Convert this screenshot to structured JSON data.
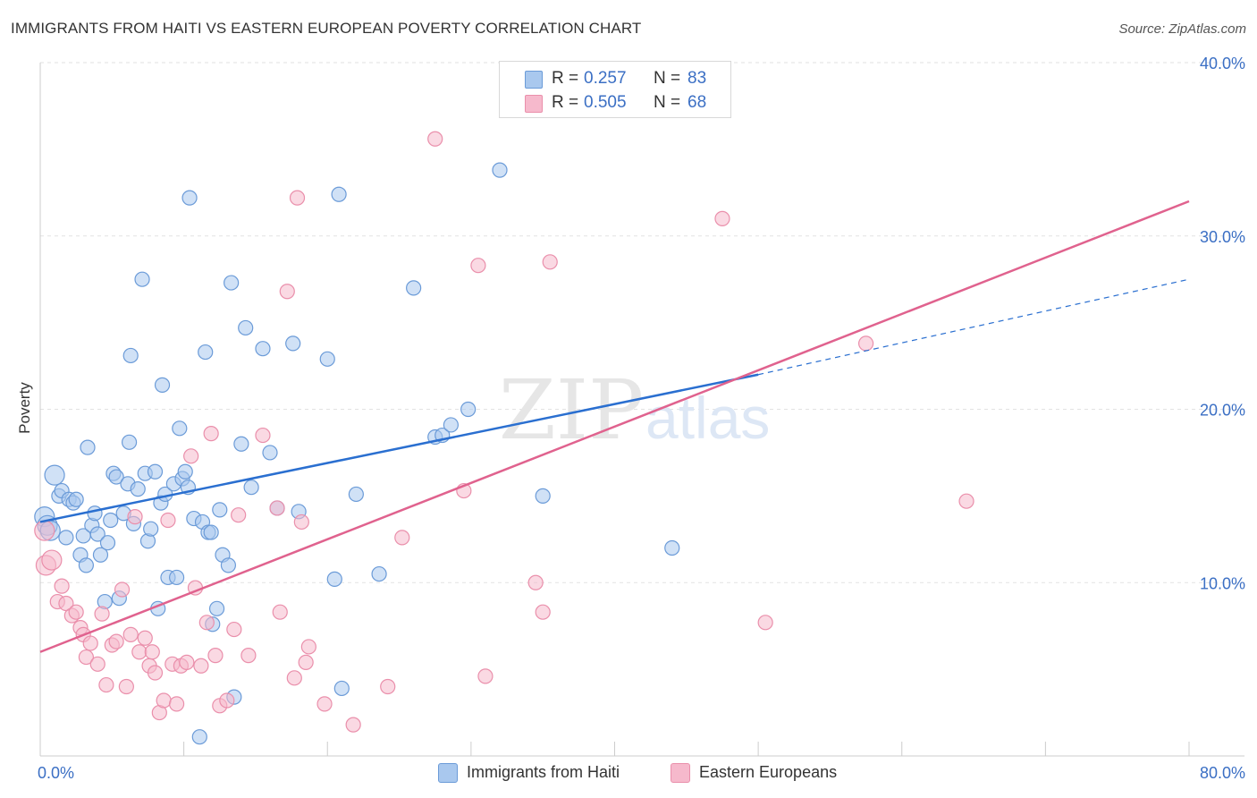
{
  "header": {
    "title": "IMMIGRANTS FROM HAITI VS EASTERN EUROPEAN POVERTY CORRELATION CHART",
    "source": "Source: ZipAtlas.com"
  },
  "watermark": {
    "zip": "ZIP",
    "atlas": "atlas"
  },
  "legend": {
    "rows": [
      {
        "r_label": "R =",
        "r_value": "0.257",
        "n_label": "N =",
        "n_value": "83"
      },
      {
        "r_label": "R =",
        "r_value": "0.505",
        "n_label": "N =",
        "n_value": "68"
      }
    ]
  },
  "colors": {
    "blue_fill": "#a9c8ee",
    "blue_stroke": "#6b9bd8",
    "blue_line": "#2a6fd0",
    "pink_fill": "#f6b9cc",
    "pink_stroke": "#ea8fab",
    "pink_line": "#e0628e",
    "tick_label": "#3b6fc4",
    "grid": "#e2e2e2"
  },
  "chart_data": {
    "type": "scatter",
    "ylabel": "Poverty",
    "xlim": [
      0,
      80
    ],
    "ylim": [
      0,
      40
    ],
    "x_tick_labels": [
      {
        "value": 0,
        "label": "0.0%"
      },
      {
        "value": 80,
        "label": "80.0%"
      }
    ],
    "y_tick_labels": [
      {
        "value": 10,
        "label": "10.0%"
      },
      {
        "value": 20,
        "label": "20.0%"
      },
      {
        "value": 30,
        "label": "30.0%"
      },
      {
        "value": 40,
        "label": "40.0%"
      }
    ],
    "grid": true,
    "legend_position": "top-center",
    "series": [
      {
        "name": "Immigrants from Haiti",
        "color": "#a9c8ee",
        "trend": {
          "x": [
            0,
            50
          ],
          "y": [
            13.5,
            22.0
          ],
          "dashed_to": {
            "x": 80,
            "y": 27.5
          }
        },
        "points": [
          [
            0.3,
            13.8
          ],
          [
            0.5,
            13.3
          ],
          [
            0.7,
            13.0
          ],
          [
            1.0,
            16.2
          ],
          [
            1.3,
            15.0
          ],
          [
            1.5,
            15.3
          ],
          [
            1.8,
            12.6
          ],
          [
            2.0,
            14.8
          ],
          [
            2.3,
            14.6
          ],
          [
            2.5,
            14.8
          ],
          [
            2.8,
            11.6
          ],
          [
            3.0,
            12.7
          ],
          [
            3.2,
            11.0
          ],
          [
            3.3,
            17.8
          ],
          [
            3.6,
            13.3
          ],
          [
            3.8,
            14.0
          ],
          [
            4.0,
            12.8
          ],
          [
            4.2,
            11.6
          ],
          [
            4.5,
            8.9
          ],
          [
            4.7,
            12.3
          ],
          [
            4.9,
            13.6
          ],
          [
            5.1,
            16.3
          ],
          [
            5.3,
            16.1
          ],
          [
            5.5,
            9.1
          ],
          [
            5.8,
            14.0
          ],
          [
            6.1,
            15.7
          ],
          [
            6.2,
            18.1
          ],
          [
            6.3,
            23.1
          ],
          [
            6.5,
            13.4
          ],
          [
            6.8,
            15.4
          ],
          [
            7.1,
            27.5
          ],
          [
            7.3,
            16.3
          ],
          [
            7.5,
            12.4
          ],
          [
            7.7,
            13.1
          ],
          [
            8.0,
            16.4
          ],
          [
            8.2,
            8.5
          ],
          [
            8.4,
            14.6
          ],
          [
            8.5,
            21.4
          ],
          [
            8.7,
            15.1
          ],
          [
            8.9,
            10.3
          ],
          [
            9.3,
            15.7
          ],
          [
            9.5,
            10.3
          ],
          [
            9.7,
            18.9
          ],
          [
            9.9,
            16.0
          ],
          [
            10.1,
            16.4
          ],
          [
            10.3,
            15.5
          ],
          [
            10.4,
            32.2
          ],
          [
            10.7,
            13.7
          ],
          [
            11.1,
            1.1
          ],
          [
            11.3,
            13.5
          ],
          [
            11.5,
            23.3
          ],
          [
            11.7,
            12.9
          ],
          [
            11.9,
            12.9
          ],
          [
            12.0,
            7.6
          ],
          [
            12.3,
            8.5
          ],
          [
            12.5,
            14.2
          ],
          [
            12.7,
            11.6
          ],
          [
            13.1,
            11.0
          ],
          [
            13.3,
            27.3
          ],
          [
            13.5,
            3.4
          ],
          [
            14.0,
            18.0
          ],
          [
            14.3,
            24.7
          ],
          [
            14.7,
            15.5
          ],
          [
            15.5,
            23.5
          ],
          [
            16.0,
            17.5
          ],
          [
            16.5,
            14.3
          ],
          [
            17.6,
            23.8
          ],
          [
            18.0,
            14.1
          ],
          [
            20.0,
            22.9
          ],
          [
            20.5,
            10.2
          ],
          [
            20.8,
            32.4
          ],
          [
            21.0,
            3.9
          ],
          [
            22.0,
            15.1
          ],
          [
            23.6,
            10.5
          ],
          [
            26.0,
            27.0
          ],
          [
            27.5,
            18.4
          ],
          [
            28.0,
            18.5
          ],
          [
            28.6,
            19.1
          ],
          [
            29.8,
            20.0
          ],
          [
            32.0,
            33.8
          ],
          [
            35.0,
            15.0
          ],
          [
            44.0,
            12.0
          ],
          [
            32.5,
            39.5
          ]
        ]
      },
      {
        "name": "Eastern Europeans",
        "color": "#f6b9cc",
        "trend": {
          "x": [
            0,
            80
          ],
          "y": [
            6.0,
            32.0
          ]
        },
        "points": [
          [
            0.3,
            13.0
          ],
          [
            0.4,
            11.0
          ],
          [
            0.8,
            11.3
          ],
          [
            1.2,
            8.9
          ],
          [
            1.5,
            9.8
          ],
          [
            1.8,
            8.8
          ],
          [
            2.2,
            8.1
          ],
          [
            2.5,
            8.3
          ],
          [
            2.8,
            7.4
          ],
          [
            3.0,
            7.0
          ],
          [
            3.2,
            5.7
          ],
          [
            3.5,
            6.5
          ],
          [
            4.0,
            5.3
          ],
          [
            4.3,
            8.2
          ],
          [
            4.6,
            4.1
          ],
          [
            5.0,
            6.4
          ],
          [
            5.3,
            6.6
          ],
          [
            5.7,
            9.6
          ],
          [
            6.0,
            4.0
          ],
          [
            6.3,
            7.0
          ],
          [
            6.6,
            13.8
          ],
          [
            6.9,
            6.0
          ],
          [
            7.3,
            6.8
          ],
          [
            7.6,
            5.2
          ],
          [
            7.8,
            6.0
          ],
          [
            8.0,
            4.8
          ],
          [
            8.3,
            2.5
          ],
          [
            8.6,
            3.2
          ],
          [
            8.9,
            13.6
          ],
          [
            9.2,
            5.3
          ],
          [
            9.5,
            3.0
          ],
          [
            9.8,
            5.2
          ],
          [
            10.2,
            5.4
          ],
          [
            10.5,
            17.3
          ],
          [
            10.8,
            9.7
          ],
          [
            11.2,
            5.2
          ],
          [
            11.6,
            7.7
          ],
          [
            11.9,
            18.6
          ],
          [
            12.2,
            5.8
          ],
          [
            12.5,
            2.9
          ],
          [
            13.0,
            3.2
          ],
          [
            13.5,
            7.3
          ],
          [
            13.8,
            13.9
          ],
          [
            14.5,
            5.8
          ],
          [
            15.5,
            18.5
          ],
          [
            16.5,
            14.3
          ],
          [
            16.7,
            8.3
          ],
          [
            17.2,
            26.8
          ],
          [
            17.7,
            4.5
          ],
          [
            17.9,
            32.2
          ],
          [
            18.2,
            13.5
          ],
          [
            18.5,
            5.4
          ],
          [
            18.7,
            6.3
          ],
          [
            19.8,
            3.0
          ],
          [
            21.8,
            1.8
          ],
          [
            24.2,
            4.0
          ],
          [
            25.2,
            12.6
          ],
          [
            27.5,
            35.6
          ],
          [
            29.5,
            15.3
          ],
          [
            30.5,
            28.3
          ],
          [
            31.0,
            4.6
          ],
          [
            34.5,
            10.0
          ],
          [
            35.0,
            8.3
          ],
          [
            35.5,
            28.5
          ],
          [
            47.5,
            31.0
          ],
          [
            50.5,
            7.7
          ],
          [
            57.5,
            23.8
          ],
          [
            64.5,
            14.7
          ]
        ]
      }
    ]
  },
  "bottom_legend": [
    {
      "label": "Immigrants from Haiti"
    },
    {
      "label": "Eastern Europeans"
    }
  ]
}
